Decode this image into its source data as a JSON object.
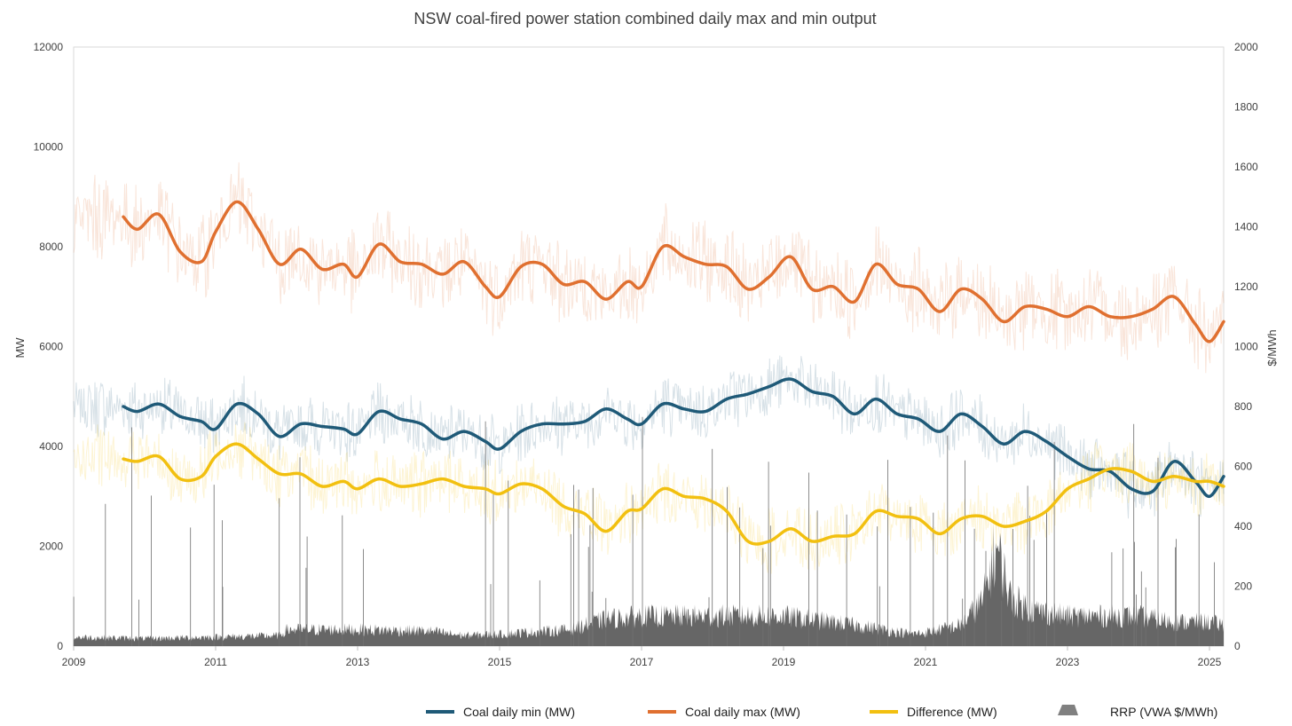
{
  "chart_data": {
    "type": "line",
    "title": "NSW coal-fired power station combined daily max and min output",
    "ylabel": "MW",
    "y2label": "$/MWh",
    "xlim": [
      2009,
      2025.2
    ],
    "ylim": [
      0,
      12000
    ],
    "y2lim": [
      0,
      2000
    ],
    "x_ticks": [
      "2009",
      "2011",
      "2013",
      "2015",
      "2017",
      "2019",
      "2021",
      "2023",
      "2025"
    ],
    "y_ticks": [
      "0",
      "2000",
      "4000",
      "6000",
      "8000",
      "10000",
      "12000"
    ],
    "y2_ticks": [
      "0",
      "200",
      "400",
      "600",
      "800",
      "1000",
      "1200",
      "1400",
      "1600",
      "1800",
      "2000"
    ],
    "grid": false,
    "legend_position": "bottom",
    "series": [
      {
        "name": "Coal daily min (MW)",
        "color": "#1f5a78",
        "axis": "left",
        "x": [
          2009.7,
          2009.9,
          2010.2,
          2010.5,
          2010.8,
          2011.0,
          2011.3,
          2011.6,
          2011.9,
          2012.2,
          2012.5,
          2012.8,
          2013.0,
          2013.3,
          2013.6,
          2013.9,
          2014.2,
          2014.5,
          2014.8,
          2015.0,
          2015.3,
          2015.6,
          2015.9,
          2016.2,
          2016.5,
          2016.8,
          2017.0,
          2017.3,
          2017.6,
          2017.9,
          2018.2,
          2018.5,
          2018.8,
          2019.1,
          2019.4,
          2019.7,
          2020.0,
          2020.3,
          2020.6,
          2020.9,
          2021.2,
          2021.5,
          2021.8,
          2022.1,
          2022.4,
          2022.7,
          2023.0,
          2023.3,
          2023.6,
          2023.9,
          2024.2,
          2024.5,
          2024.8,
          2025.0,
          2025.2
        ],
        "values": [
          4800,
          4700,
          4850,
          4600,
          4500,
          4350,
          4850,
          4650,
          4200,
          4450,
          4400,
          4350,
          4250,
          4700,
          4550,
          4450,
          4150,
          4300,
          4100,
          3950,
          4300,
          4450,
          4450,
          4500,
          4750,
          4550,
          4450,
          4850,
          4750,
          4700,
          4950,
          5050,
          5200,
          5350,
          5100,
          5000,
          4650,
          4950,
          4650,
          4550,
          4300,
          4650,
          4400,
          4050,
          4300,
          4100,
          3800,
          3550,
          3500,
          3150,
          3100,
          3700,
          3300,
          3000,
          3400
        ]
      },
      {
        "name": "Coal daily max (MW)",
        "color": "#e07030",
        "axis": "left",
        "x": [
          2009.7,
          2009.9,
          2010.2,
          2010.5,
          2010.8,
          2011.0,
          2011.3,
          2011.6,
          2011.9,
          2012.2,
          2012.5,
          2012.8,
          2013.0,
          2013.3,
          2013.6,
          2013.9,
          2014.2,
          2014.5,
          2014.8,
          2015.0,
          2015.3,
          2015.6,
          2015.9,
          2016.2,
          2016.5,
          2016.8,
          2017.0,
          2017.3,
          2017.6,
          2017.9,
          2018.2,
          2018.5,
          2018.8,
          2019.1,
          2019.4,
          2019.7,
          2020.0,
          2020.3,
          2020.6,
          2020.9,
          2021.2,
          2021.5,
          2021.8,
          2022.1,
          2022.4,
          2022.7,
          2023.0,
          2023.3,
          2023.6,
          2023.9,
          2024.2,
          2024.5,
          2024.8,
          2025.0,
          2025.2
        ],
        "values": [
          8600,
          8350,
          8650,
          7900,
          7700,
          8300,
          8900,
          8350,
          7650,
          7950,
          7550,
          7650,
          7400,
          8050,
          7700,
          7650,
          7450,
          7700,
          7200,
          7000,
          7600,
          7650,
          7250,
          7300,
          6950,
          7300,
          7200,
          8000,
          7800,
          7650,
          7600,
          7150,
          7400,
          7800,
          7150,
          7200,
          6900,
          7650,
          7250,
          7150,
          6700,
          7150,
          6950,
          6500,
          6800,
          6750,
          6600,
          6800,
          6600,
          6600,
          6750,
          7000,
          6450,
          6100,
          6500
        ]
      },
      {
        "name": "Difference (MW)",
        "color": "#f2c010",
        "axis": "left",
        "x": [
          2009.7,
          2009.9,
          2010.2,
          2010.5,
          2010.8,
          2011.0,
          2011.3,
          2011.6,
          2011.9,
          2012.2,
          2012.5,
          2012.8,
          2013.0,
          2013.3,
          2013.6,
          2013.9,
          2014.2,
          2014.5,
          2014.8,
          2015.0,
          2015.3,
          2015.6,
          2015.9,
          2016.2,
          2016.5,
          2016.8,
          2017.0,
          2017.3,
          2017.6,
          2017.9,
          2018.2,
          2018.5,
          2018.8,
          2019.1,
          2019.4,
          2019.7,
          2020.0,
          2020.3,
          2020.6,
          2020.9,
          2021.2,
          2021.5,
          2021.8,
          2022.1,
          2022.4,
          2022.7,
          2023.0,
          2023.3,
          2023.6,
          2023.9,
          2024.2,
          2024.5,
          2024.8,
          2025.0,
          2025.2
        ],
        "values": [
          3750,
          3700,
          3800,
          3350,
          3400,
          3800,
          4050,
          3750,
          3450,
          3450,
          3200,
          3300,
          3150,
          3350,
          3200,
          3250,
          3350,
          3200,
          3150,
          3050,
          3250,
          3150,
          2800,
          2650,
          2300,
          2700,
          2750,
          3150,
          3000,
          2950,
          2700,
          2100,
          2100,
          2350,
          2100,
          2200,
          2250,
          2700,
          2600,
          2550,
          2250,
          2550,
          2600,
          2400,
          2500,
          2700,
          3150,
          3350,
          3550,
          3500,
          3300,
          3400,
          3300,
          3300,
          3200
        ]
      },
      {
        "name": "RRP (VWA $/MWh)",
        "color": "#666666",
        "axis": "right",
        "x": [
          2009.0,
          2010.0,
          2011.0,
          2011.9,
          2012.0,
          2013.0,
          2014.0,
          2014.5,
          2015.0,
          2016.0,
          2016.5,
          2017.0,
          2018.0,
          2019.0,
          2020.0,
          2020.8,
          2021.0,
          2021.5,
          2021.8,
          2022.0,
          2022.2,
          2022.5,
          2023.0,
          2023.5,
          2024.0,
          2024.5,
          2025.0,
          2025.2
        ],
        "values": [
          30,
          25,
          30,
          35,
          55,
          55,
          50,
          35,
          40,
          55,
          90,
          100,
          100,
          100,
          70,
          40,
          45,
          70,
          150,
          330,
          160,
          120,
          100,
          100,
          100,
          80,
          80,
          70
        ]
      }
    ]
  }
}
